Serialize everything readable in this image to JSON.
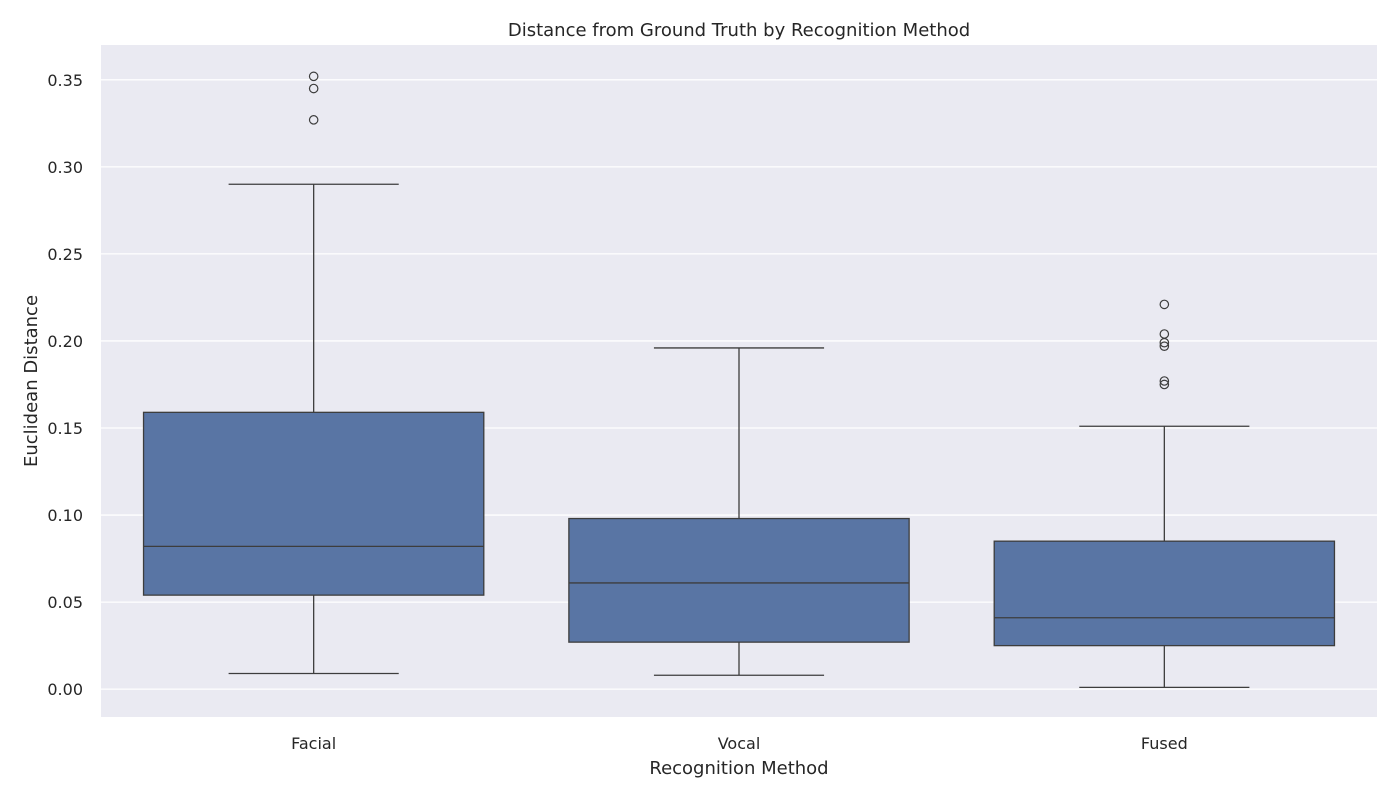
{
  "chart_data": {
    "type": "box",
    "title": "Distance from Ground Truth by Recognition Method",
    "xlabel": "Recognition Method",
    "ylabel": "Euclidean Distance",
    "ylim": [
      -0.016,
      0.37
    ],
    "yticks": [
      0.0,
      0.05,
      0.1,
      0.15,
      0.2,
      0.25,
      0.3,
      0.35
    ],
    "ytick_labels": [
      "0.00",
      "0.05",
      "0.10",
      "0.15",
      "0.20",
      "0.25",
      "0.30",
      "0.35"
    ],
    "grid": true,
    "colors": {
      "background": "#eaeaf2",
      "box": "#5975a4",
      "line": "#3d3d3d",
      "grid": "#ffffff"
    },
    "categories": [
      "Facial",
      "Vocal",
      "Fused"
    ],
    "boxes": [
      {
        "category": "Facial",
        "whisker_low": 0.009,
        "q1": 0.054,
        "median": 0.082,
        "q3": 0.159,
        "whisker_high": 0.29,
        "outliers": [
          0.327,
          0.345,
          0.352
        ]
      },
      {
        "category": "Vocal",
        "whisker_low": 0.008,
        "q1": 0.027,
        "median": 0.061,
        "q3": 0.098,
        "whisker_high": 0.196,
        "outliers": []
      },
      {
        "category": "Fused",
        "whisker_low": 0.001,
        "q1": 0.025,
        "median": 0.041,
        "q3": 0.085,
        "whisker_high": 0.151,
        "outliers": [
          0.175,
          0.177,
          0.197,
          0.199,
          0.204,
          0.221
        ]
      }
    ]
  }
}
